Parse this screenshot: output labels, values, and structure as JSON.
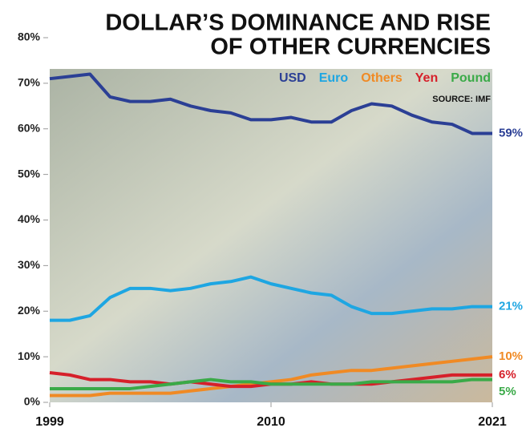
{
  "chart_data": {
    "type": "line",
    "title": "DOLLAR’S DOMINANCE AND RISE",
    "subtitle": "OF OTHER CURRENCIES",
    "source": "SOURCE: IMF",
    "x": [
      1999,
      2000,
      2001,
      2002,
      2003,
      2004,
      2005,
      2006,
      2007,
      2008,
      2009,
      2010,
      2011,
      2012,
      2013,
      2014,
      2015,
      2016,
      2017,
      2018,
      2019,
      2020,
      2021
    ],
    "xlim": [
      1999,
      2021
    ],
    "xticks": [
      1999,
      2010,
      2021
    ],
    "ylim": [
      0,
      80
    ],
    "yticks": [
      {
        "value": 0,
        "label": "0%"
      },
      {
        "value": 10,
        "label": "10%"
      },
      {
        "value": 20,
        "label": "20%"
      },
      {
        "value": 30,
        "label": "30%"
      },
      {
        "value": 40,
        "label": "40%"
      },
      {
        "value": 50,
        "label": "50%"
      },
      {
        "value": 60,
        "label": "60%"
      },
      {
        "value": 70,
        "label": "70%"
      },
      {
        "value": 80,
        "label": "80%"
      }
    ],
    "series": [
      {
        "name": "USD",
        "color": "#2b3f95",
        "values": [
          71,
          71.5,
          72,
          67,
          66,
          66,
          66.5,
          65,
          64,
          63.5,
          62,
          62,
          62.5,
          61.5,
          61.5,
          64,
          65.5,
          65,
          63,
          61.5,
          61,
          59,
          59
        ],
        "value_labels": [
          null,
          null,
          null,
          null,
          null,
          null,
          null,
          null,
          null,
          null,
          null,
          null,
          null,
          null,
          null,
          null,
          null,
          null,
          null,
          null,
          null,
          null,
          "59%"
        ]
      },
      {
        "name": "Euro",
        "color": "#1ea6e2",
        "values": [
          18,
          18,
          19,
          23,
          25,
          25,
          24.5,
          25,
          26,
          26.5,
          27.5,
          26,
          25,
          24,
          23.5,
          21,
          19.5,
          19.5,
          20,
          20.5,
          20.5,
          21,
          21
        ],
        "value_labels": [
          null,
          null,
          null,
          null,
          null,
          null,
          null,
          null,
          null,
          null,
          null,
          null,
          null,
          null,
          null,
          null,
          null,
          null,
          null,
          null,
          null,
          null,
          "21%"
        ]
      },
      {
        "name": "Others",
        "color": "#f08a24",
        "values": [
          1.5,
          1.5,
          1.5,
          2,
          2,
          2,
          2,
          2.5,
          3,
          3.5,
          4,
          4.5,
          5,
          6,
          6.5,
          7,
          7,
          7.5,
          8,
          8.5,
          9,
          9.5,
          10
        ],
        "value_labels": [
          null,
          null,
          null,
          null,
          null,
          null,
          null,
          null,
          null,
          null,
          null,
          null,
          null,
          null,
          null,
          null,
          null,
          null,
          null,
          null,
          null,
          null,
          "10%"
        ]
      },
      {
        "name": "Yen",
        "color": "#d6202a",
        "values": [
          6.5,
          6,
          5,
          5,
          4.5,
          4.5,
          4,
          4.5,
          4,
          3.5,
          3.5,
          4,
          4,
          4.5,
          4,
          4,
          4,
          4.5,
          5,
          5.5,
          6,
          6,
          6
        ],
        "value_labels": [
          null,
          null,
          null,
          null,
          null,
          null,
          null,
          null,
          null,
          null,
          null,
          null,
          null,
          null,
          null,
          null,
          null,
          null,
          null,
          null,
          null,
          null,
          "6%"
        ]
      },
      {
        "name": "Pound",
        "color": "#3aaa48",
        "values": [
          3,
          3,
          3,
          3,
          3,
          3.5,
          4,
          4.5,
          5,
          4.5,
          4.5,
          4,
          4,
          4,
          4,
          4,
          4.5,
          4.5,
          4.5,
          4.5,
          4.5,
          5,
          5
        ],
        "value_labels": [
          null,
          null,
          null,
          null,
          null,
          null,
          null,
          null,
          null,
          null,
          null,
          null,
          null,
          null,
          null,
          null,
          null,
          null,
          null,
          null,
          null,
          null,
          "5%"
        ]
      }
    ]
  }
}
